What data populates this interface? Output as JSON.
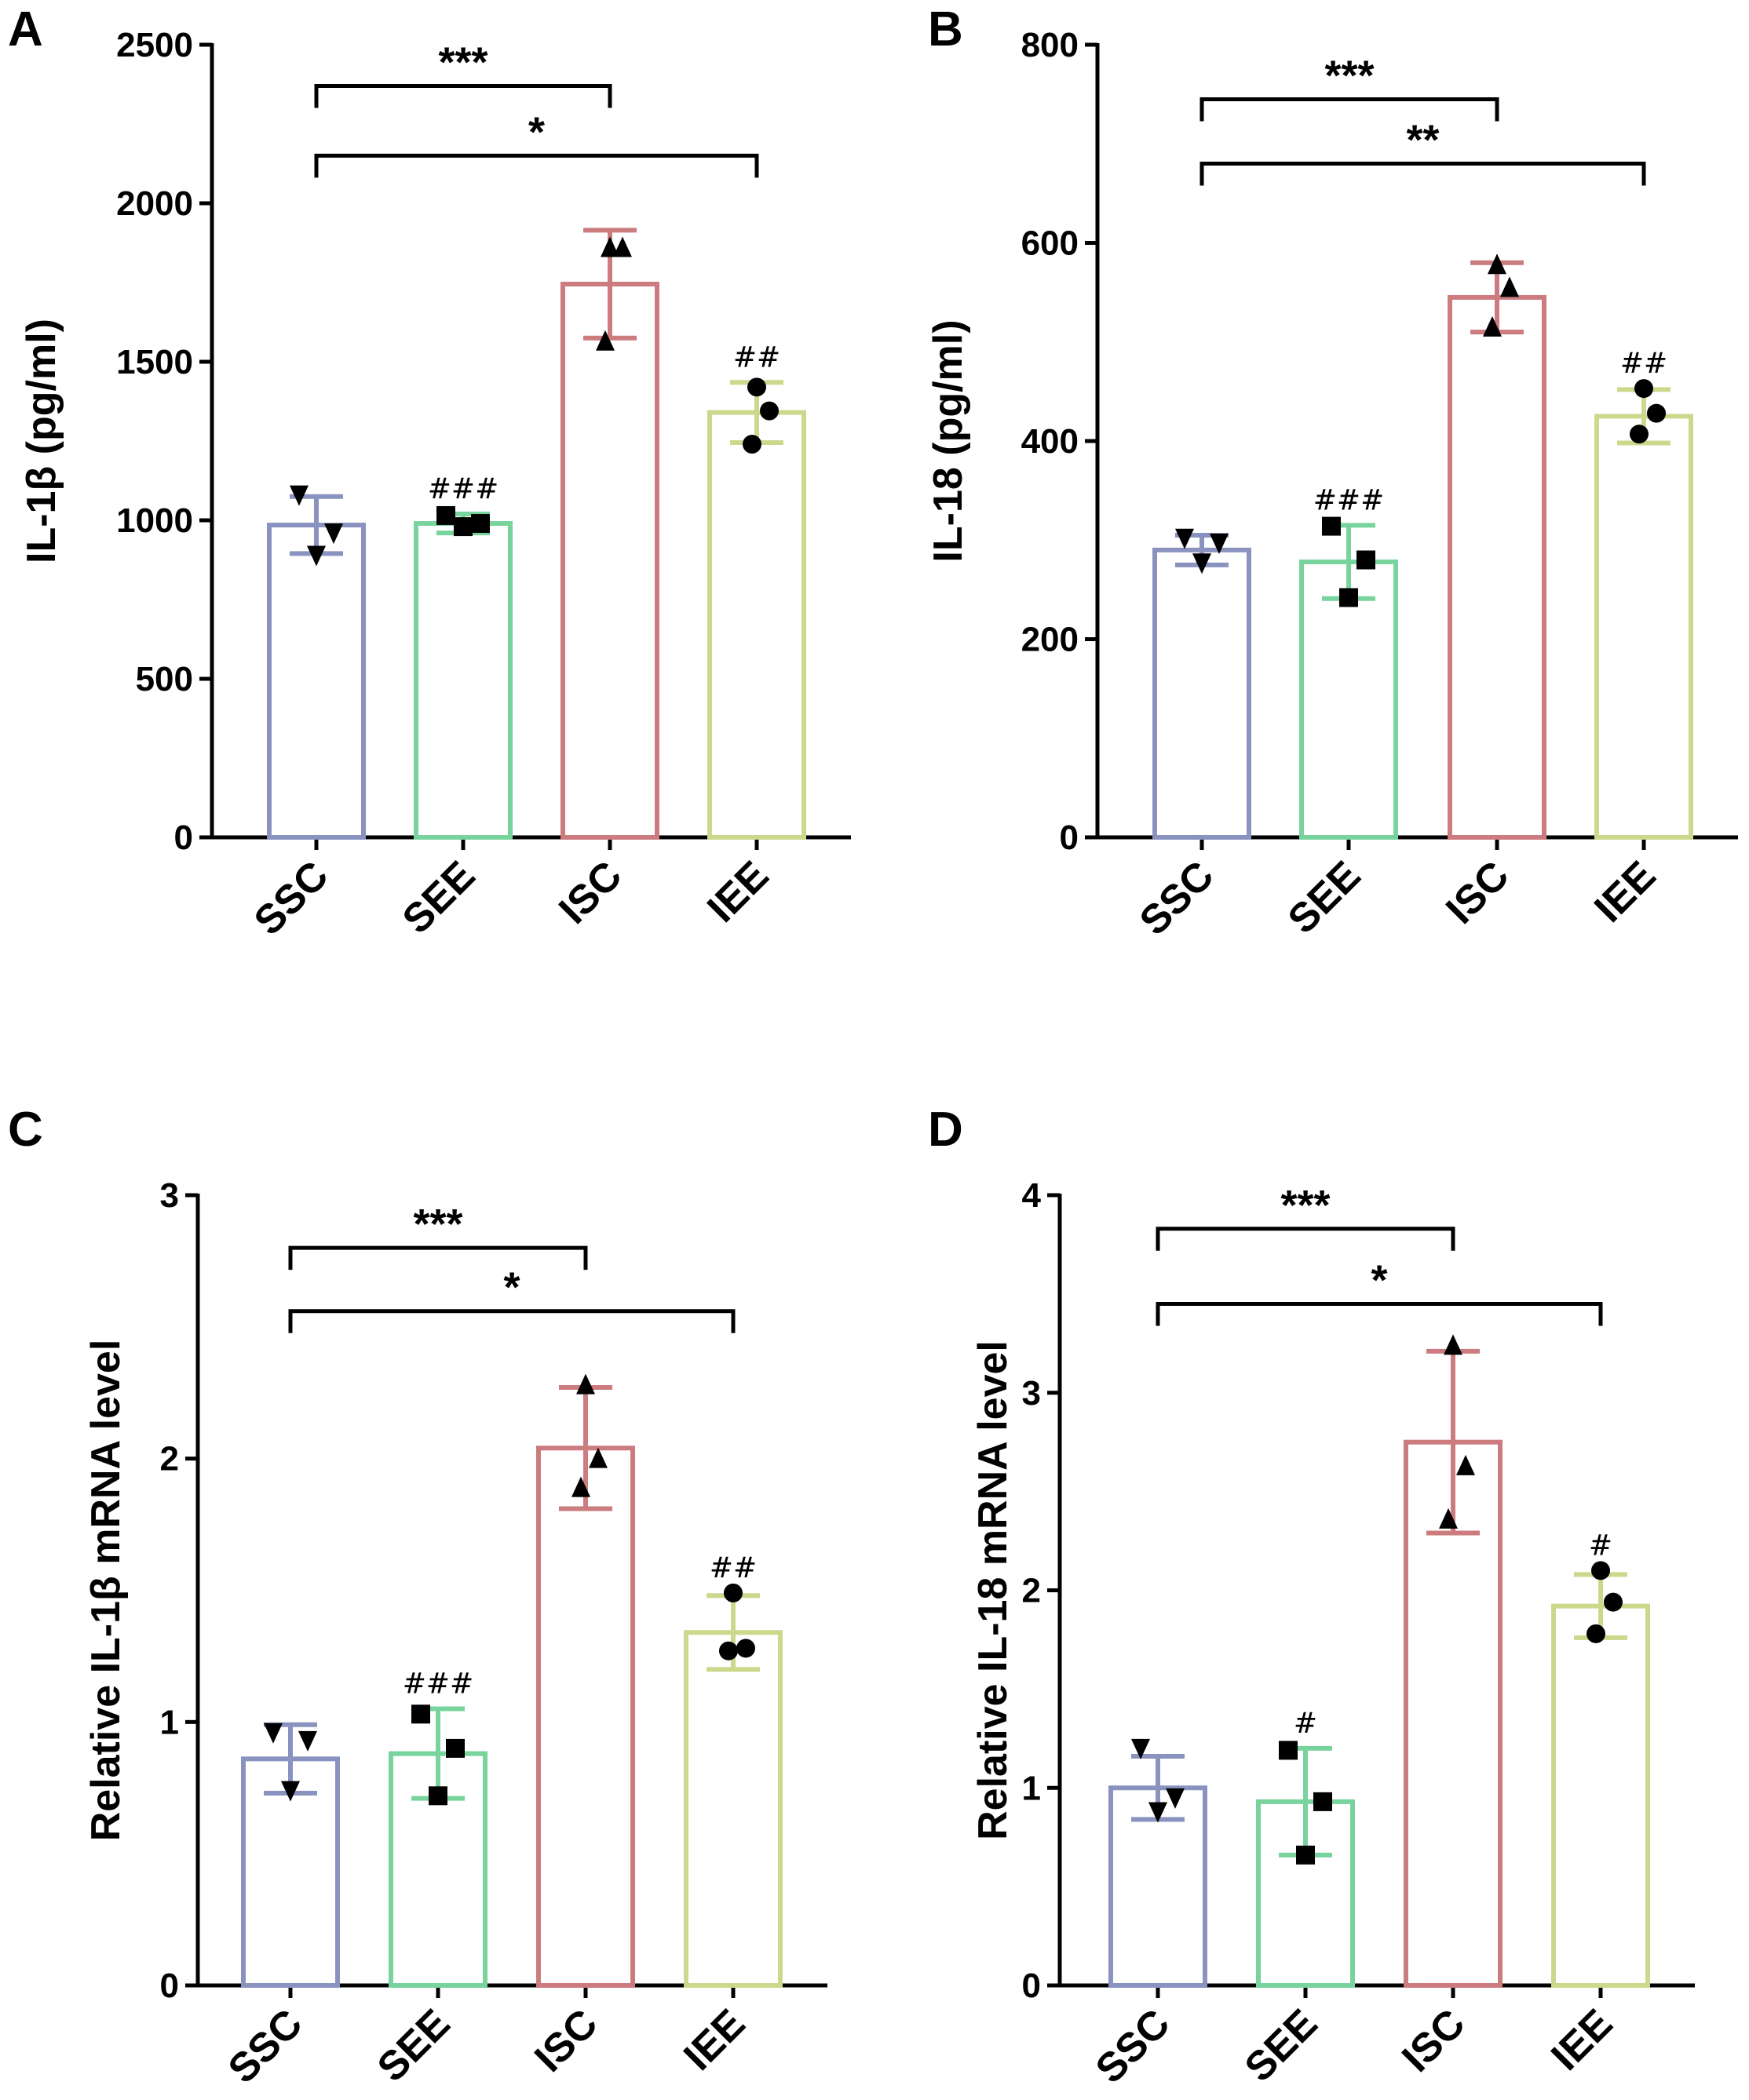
{
  "colors": {
    "SSC": "#8a93bf",
    "SEE": "#78d49c",
    "ISC": "#cc7b7f",
    "IEE": "#cdd88c",
    "axis": "#000000",
    "points": "#000000"
  },
  "chart_data": [
    {
      "id": "A",
      "panel_label": "A",
      "type": "bar",
      "title": "",
      "xlabel": "",
      "ylabel": "IL-1β (pg/ml)",
      "ylim": [
        0,
        2500
      ],
      "yticks": [
        0,
        500,
        1000,
        1500,
        2000,
        2500
      ],
      "categories": [
        "SSC",
        "SEE",
        "ISC",
        "IEE"
      ],
      "values": [
        985,
        990,
        1745,
        1340
      ],
      "errors": [
        90,
        30,
        170,
        95
      ],
      "markers": [
        "triangle-down",
        "square",
        "triangle-up",
        "circle"
      ],
      "points": [
        [
          1080,
          960,
          890
        ],
        [
          1015,
          990,
          980
        ],
        [
          1860,
          1860,
          1565
        ],
        [
          1420,
          1345,
          1240
        ]
      ],
      "sig_brackets": [
        {
          "from": "SSC",
          "to": "ISC",
          "label": "***",
          "y": 2370
        },
        {
          "from": "SSC",
          "to": "IEE",
          "label": "*",
          "y": 2150
        }
      ],
      "annotations": [
        {
          "category": "SEE",
          "label": "###"
        },
        {
          "category": "IEE",
          "label": "##"
        }
      ]
    },
    {
      "id": "B",
      "panel_label": "B",
      "type": "bar",
      "title": "",
      "xlabel": "",
      "ylabel": "IL-18 (pg/ml)",
      "ylim": [
        0,
        800
      ],
      "yticks": [
        0,
        200,
        400,
        600,
        800
      ],
      "categories": [
        "SSC",
        "SEE",
        "ISC",
        "IEE"
      ],
      "values": [
        290,
        278,
        545,
        425
      ],
      "errors": [
        15,
        37,
        35,
        27
      ],
      "markers": [
        "triangle-down",
        "square",
        "triangle-up",
        "circle"
      ],
      "points": [
        [
          302,
          297,
          277
        ],
        [
          314,
          280,
          242
        ],
        [
          578,
          555,
          515
        ],
        [
          453,
          428,
          407
        ]
      ],
      "sig_brackets": [
        {
          "from": "SSC",
          "to": "ISC",
          "label": "***",
          "y": 745
        },
        {
          "from": "SSC",
          "to": "IEE",
          "label": "**",
          "y": 680
        }
      ],
      "annotations": [
        {
          "category": "SEE",
          "label": "###"
        },
        {
          "category": "IEE",
          "label": "##"
        }
      ]
    },
    {
      "id": "C",
      "panel_label": "C",
      "type": "bar",
      "title": "",
      "xlabel": "",
      "ylabel": "Relative IL-1β mRNA level",
      "ylim": [
        0,
        3
      ],
      "yticks": [
        0,
        1,
        2,
        3
      ],
      "categories": [
        "SSC",
        "SEE",
        "ISC",
        "IEE"
      ],
      "values": [
        0.86,
        0.88,
        2.04,
        1.34
      ],
      "errors": [
        0.13,
        0.17,
        0.23,
        0.14
      ],
      "markers": [
        "triangle-down",
        "square",
        "triangle-up",
        "circle"
      ],
      "points": [
        [
          0.96,
          0.93,
          0.74
        ],
        [
          1.03,
          0.9,
          0.72
        ],
        [
          2.28,
          2.0,
          1.89
        ],
        [
          1.49,
          1.28,
          1.27
        ]
      ],
      "sig_brackets": [
        {
          "from": "SSC",
          "to": "ISC",
          "label": "***",
          "y": 2.8
        },
        {
          "from": "SSC",
          "to": "IEE",
          "label": "*",
          "y": 2.56
        }
      ],
      "annotations": [
        {
          "category": "SEE",
          "label": "###"
        },
        {
          "category": "IEE",
          "label": "##"
        }
      ]
    },
    {
      "id": "D",
      "panel_label": "D",
      "type": "bar",
      "title": "",
      "xlabel": "",
      "ylabel": "Relative IL-18 mRNA level",
      "ylim": [
        0,
        4
      ],
      "yticks": [
        0,
        1,
        2,
        3,
        4
      ],
      "categories": [
        "SSC",
        "SEE",
        "ISC",
        "IEE"
      ],
      "values": [
        1.0,
        0.93,
        2.75,
        1.92
      ],
      "errors": [
        0.16,
        0.27,
        0.46,
        0.16
      ],
      "markers": [
        "triangle-down",
        "square",
        "triangle-up",
        "circle"
      ],
      "points": [
        [
          1.2,
          0.95,
          0.88
        ],
        [
          1.19,
          0.93,
          0.66
        ],
        [
          3.24,
          2.63,
          2.36
        ],
        [
          2.1,
          1.94,
          1.78
        ]
      ],
      "sig_brackets": [
        {
          "from": "SSC",
          "to": "ISC",
          "label": "***",
          "y": 3.83
        },
        {
          "from": "SSC",
          "to": "IEE",
          "label": "*",
          "y": 3.45
        }
      ],
      "annotations": [
        {
          "category": "SEE",
          "label": "#"
        },
        {
          "category": "IEE",
          "label": "#"
        }
      ]
    }
  ]
}
